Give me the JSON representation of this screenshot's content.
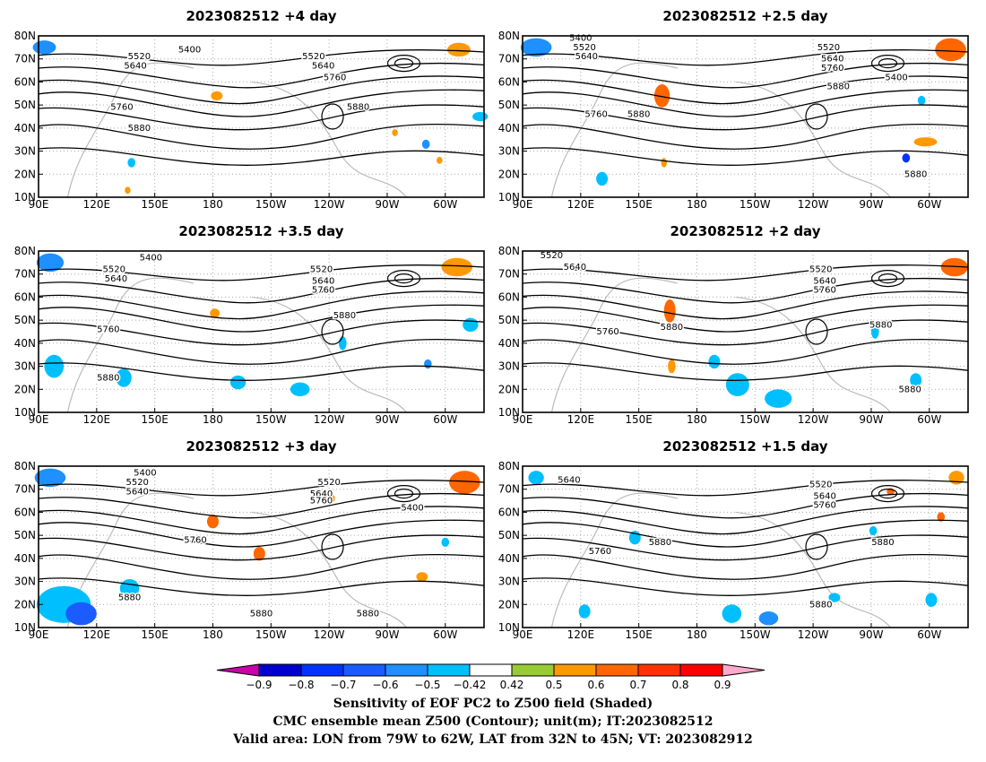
{
  "chart_data": [
    {
      "type": "heatmap",
      "title": "2023082512  +4 day",
      "xticks": [
        "90E",
        "120E",
        "150E",
        "180",
        "150W",
        "120W",
        "90W",
        "60W"
      ],
      "yticks": [
        "10N",
        "20N",
        "30N",
        "40N",
        "50N",
        "60N",
        "70N",
        "80N"
      ],
      "xlim_deg_east": [
        90,
        320
      ],
      "ylim_deg_north": [
        10,
        80
      ],
      "grid": "dotted",
      "contour_labels": [
        {
          "text": "5400",
          "lon": 168,
          "lat": 74
        },
        {
          "text": "5520",
          "lon": 142,
          "lat": 71
        },
        {
          "text": "5640",
          "lon": 140,
          "lat": 67
        },
        {
          "text": "5520",
          "lon": 232,
          "lat": 71
        },
        {
          "text": "5640",
          "lon": 237,
          "lat": 67
        },
        {
          "text": "5760",
          "lon": 243,
          "lat": 62
        },
        {
          "text": "5760",
          "lon": 133,
          "lat": 49
        },
        {
          "text": "5880",
          "lon": 142,
          "lat": 40
        },
        {
          "text": "5880",
          "lon": 255,
          "lat": 49
        }
      ],
      "shading": [
        {
          "value": -0.6,
          "lon": 93,
          "lat": 75,
          "rx": 6,
          "ry": 3
        },
        {
          "value": 0.5,
          "lon": 307,
          "lat": 74,
          "rx": 6,
          "ry": 3
        },
        {
          "value": 0.5,
          "lon": 182,
          "lat": 54,
          "rx": 3,
          "ry": 2
        },
        {
          "value": -0.5,
          "lon": 318,
          "lat": 45,
          "rx": 4,
          "ry": 2
        },
        {
          "value": -0.5,
          "lon": 138,
          "lat": 25,
          "rx": 2,
          "ry": 2
        },
        {
          "value": 0.5,
          "lon": 136,
          "lat": 13,
          "rx": 1.5,
          "ry": 1.5
        },
        {
          "value": -0.6,
          "lon": 290,
          "lat": 33,
          "rx": 2,
          "ry": 2
        },
        {
          "value": 0.5,
          "lon": 297,
          "lat": 26,
          "rx": 1.5,
          "ry": 1.5
        },
        {
          "value": 0.5,
          "lon": 274,
          "lat": 38,
          "rx": 1.5,
          "ry": 1.5
        }
      ]
    },
    {
      "type": "heatmap",
      "title": "2023082512  +2.5 day",
      "xticks": [
        "90E",
        "120E",
        "150E",
        "180",
        "150W",
        "120W",
        "90W",
        "60W"
      ],
      "yticks": [
        "10N",
        "20N",
        "30N",
        "40N",
        "50N",
        "60N",
        "70N",
        "80N"
      ],
      "xlim_deg_east": [
        90,
        320
      ],
      "ylim_deg_north": [
        10,
        80
      ],
      "grid": "dotted",
      "contour_labels": [
        {
          "text": "5400",
          "lon": 120,
          "lat": 79
        },
        {
          "text": "5520",
          "lon": 122,
          "lat": 75
        },
        {
          "text": "5640",
          "lon": 123,
          "lat": 71
        },
        {
          "text": "5520",
          "lon": 248,
          "lat": 75
        },
        {
          "text": "5640",
          "lon": 250,
          "lat": 70
        },
        {
          "text": "5760",
          "lon": 250,
          "lat": 66
        },
        {
          "text": "5400",
          "lon": 283,
          "lat": 62
        },
        {
          "text": "5880",
          "lon": 253,
          "lat": 58
        },
        {
          "text": "5760",
          "lon": 128,
          "lat": 46
        },
        {
          "text": "5880",
          "lon": 150,
          "lat": 46
        },
        {
          "text": "5880",
          "lon": 293,
          "lat": 20
        }
      ],
      "shading": [
        {
          "value": -0.6,
          "lon": 97,
          "lat": 75,
          "rx": 8,
          "ry": 4
        },
        {
          "value": 0.6,
          "lon": 311,
          "lat": 74,
          "rx": 8,
          "ry": 5
        },
        {
          "value": 0.6,
          "lon": 162,
          "lat": 54,
          "rx": 4,
          "ry": 5
        },
        {
          "value": -0.5,
          "lon": 296,
          "lat": 52,
          "rx": 2,
          "ry": 2
        },
        {
          "value": 0.5,
          "lon": 298,
          "lat": 34,
          "rx": 6,
          "ry": 2
        },
        {
          "value": -0.8,
          "lon": 288,
          "lat": 27,
          "rx": 2,
          "ry": 2
        },
        {
          "value": -0.5,
          "lon": 131,
          "lat": 18,
          "rx": 3,
          "ry": 3
        },
        {
          "value": 0.5,
          "lon": 163,
          "lat": 25,
          "rx": 1.5,
          "ry": 2
        }
      ]
    },
    {
      "type": "heatmap",
      "title": "2023082512  +3.5 day",
      "xticks": [
        "90E",
        "120E",
        "150E",
        "180",
        "150W",
        "120W",
        "90W",
        "60W"
      ],
      "yticks": [
        "10N",
        "20N",
        "30N",
        "40N",
        "50N",
        "60N",
        "70N",
        "80N"
      ],
      "xlim_deg_east": [
        90,
        320
      ],
      "ylim_deg_north": [
        10,
        80
      ],
      "grid": "dotted",
      "contour_labels": [
        {
          "text": "5400",
          "lon": 148,
          "lat": 77
        },
        {
          "text": "5520",
          "lon": 129,
          "lat": 72
        },
        {
          "text": "5640",
          "lon": 130,
          "lat": 68
        },
        {
          "text": "5520",
          "lon": 236,
          "lat": 72
        },
        {
          "text": "5640",
          "lon": 237,
          "lat": 67
        },
        {
          "text": "5760",
          "lon": 237,
          "lat": 63
        },
        {
          "text": "5880",
          "lon": 248,
          "lat": 52
        },
        {
          "text": "5760",
          "lon": 126,
          "lat": 46
        },
        {
          "text": "5880",
          "lon": 126,
          "lat": 25
        }
      ],
      "shading": [
        {
          "value": -0.6,
          "lon": 96,
          "lat": 75,
          "rx": 7,
          "ry": 4
        },
        {
          "value": 0.5,
          "lon": 306,
          "lat": 73,
          "rx": 8,
          "ry": 4
        },
        {
          "value": 0.5,
          "lon": 181,
          "lat": 53,
          "rx": 2.5,
          "ry": 2
        },
        {
          "value": -0.5,
          "lon": 313,
          "lat": 48,
          "rx": 4,
          "ry": 3
        },
        {
          "value": -0.5,
          "lon": 134,
          "lat": 25,
          "rx": 4,
          "ry": 4
        },
        {
          "value": -0.5,
          "lon": 193,
          "lat": 23,
          "rx": 4,
          "ry": 3
        },
        {
          "value": -0.5,
          "lon": 225,
          "lat": 20,
          "rx": 5,
          "ry": 3
        },
        {
          "value": -0.5,
          "lon": 98,
          "lat": 30,
          "rx": 5,
          "ry": 5
        },
        {
          "value": -0.6,
          "lon": 291,
          "lat": 31,
          "rx": 2,
          "ry": 2
        },
        {
          "value": -0.5,
          "lon": 247,
          "lat": 40,
          "rx": 2,
          "ry": 3
        }
      ]
    },
    {
      "type": "heatmap",
      "title": "2023082512  +2 day",
      "xticks": [
        "90E",
        "120E",
        "150E",
        "180",
        "150W",
        "120W",
        "90W",
        "60W"
      ],
      "yticks": [
        "10N",
        "20N",
        "30N",
        "40N",
        "50N",
        "60N",
        "70N",
        "80N"
      ],
      "xlim_deg_east": [
        90,
        320
      ],
      "ylim_deg_north": [
        10,
        80
      ],
      "grid": "dotted",
      "contour_labels": [
        {
          "text": "5520",
          "lon": 105,
          "lat": 78
        },
        {
          "text": "5640",
          "lon": 117,
          "lat": 73
        },
        {
          "text": "5520",
          "lon": 244,
          "lat": 72
        },
        {
          "text": "5640",
          "lon": 246,
          "lat": 67
        },
        {
          "text": "5760",
          "lon": 246,
          "lat": 63
        },
        {
          "text": "5760",
          "lon": 134,
          "lat": 45
        },
        {
          "text": "5880",
          "lon": 167,
          "lat": 47
        },
        {
          "text": "5880",
          "lon": 275,
          "lat": 48
        },
        {
          "text": "5880",
          "lon": 290,
          "lat": 20
        }
      ],
      "shading": [
        {
          "value": 0.6,
          "lon": 313,
          "lat": 73,
          "rx": 7,
          "ry": 4
        },
        {
          "value": 0.6,
          "lon": 166,
          "lat": 54,
          "rx": 3,
          "ry": 5
        },
        {
          "value": -0.5,
          "lon": 201,
          "lat": 22,
          "rx": 6,
          "ry": 5
        },
        {
          "value": -0.5,
          "lon": 222,
          "lat": 16,
          "rx": 7,
          "ry": 4
        },
        {
          "value": -0.5,
          "lon": 272,
          "lat": 45,
          "rx": 2,
          "ry": 3
        },
        {
          "value": -0.5,
          "lon": 293,
          "lat": 24,
          "rx": 3,
          "ry": 3
        },
        {
          "value": 0.5,
          "lon": 167,
          "lat": 30,
          "rx": 2,
          "ry": 3
        },
        {
          "value": -0.5,
          "lon": 189,
          "lat": 32,
          "rx": 3,
          "ry": 3
        }
      ]
    },
    {
      "type": "heatmap",
      "title": "2023082512  +3 day",
      "xticks": [
        "90E",
        "120E",
        "150E",
        "180",
        "150W",
        "120W",
        "90W",
        "60W"
      ],
      "yticks": [
        "10N",
        "20N",
        "30N",
        "40N",
        "50N",
        "60N",
        "70N",
        "80N"
      ],
      "xlim_deg_east": [
        90,
        320
      ],
      "ylim_deg_north": [
        10,
        80
      ],
      "grid": "dotted",
      "contour_labels": [
        {
          "text": "5400",
          "lon": 145,
          "lat": 77
        },
        {
          "text": "5520",
          "lon": 141,
          "lat": 73
        },
        {
          "text": "5640",
          "lon": 141,
          "lat": 69
        },
        {
          "text": "5520",
          "lon": 240,
          "lat": 73
        },
        {
          "text": "5640",
          "lon": 236,
          "lat": 68
        },
        {
          "text": "5760",
          "lon": 236,
          "lat": 65
        },
        {
          "text": "5400",
          "lon": 283,
          "lat": 62
        },
        {
          "text": "5760",
          "lon": 171,
          "lat": 48
        },
        {
          "text": "5880",
          "lon": 137,
          "lat": 23
        },
        {
          "text": "5880",
          "lon": 205,
          "lat": 16
        },
        {
          "text": "5880",
          "lon": 260,
          "lat": 16
        }
      ],
      "shading": [
        {
          "value": -0.6,
          "lon": 96,
          "lat": 75,
          "rx": 8,
          "ry": 4
        },
        {
          "value": 0.6,
          "lon": 310,
          "lat": 73,
          "rx": 8,
          "ry": 5
        },
        {
          "value": 0.6,
          "lon": 180,
          "lat": 56,
          "rx": 3,
          "ry": 3
        },
        {
          "value": 0.6,
          "lon": 204,
          "lat": 42,
          "rx": 3,
          "ry": 3
        },
        {
          "value": 0.5,
          "lon": 241,
          "lat": 66,
          "rx": 2,
          "ry": 2
        },
        {
          "value": -0.5,
          "lon": 103,
          "lat": 20,
          "rx": 14,
          "ry": 8
        },
        {
          "value": -0.7,
          "lon": 112,
          "lat": 16,
          "rx": 8,
          "ry": 5
        },
        {
          "value": -0.5,
          "lon": 137,
          "lat": 27,
          "rx": 5,
          "ry": 4
        },
        {
          "value": 0.5,
          "lon": 288,
          "lat": 32,
          "rx": 3,
          "ry": 2
        },
        {
          "value": -0.5,
          "lon": 300,
          "lat": 47,
          "rx": 2,
          "ry": 2
        }
      ]
    },
    {
      "type": "heatmap",
      "title": "2023082512  +1.5 day",
      "xticks": [
        "90E",
        "120E",
        "150E",
        "180",
        "150W",
        "120W",
        "90W",
        "60W"
      ],
      "yticks": [
        "10N",
        "20N",
        "30N",
        "40N",
        "50N",
        "60N",
        "70N",
        "80N"
      ],
      "xlim_deg_east": [
        90,
        320
      ],
      "ylim_deg_north": [
        10,
        80
      ],
      "grid": "dotted",
      "contour_labels": [
        {
          "text": "5640",
          "lon": 114,
          "lat": 74
        },
        {
          "text": "5520",
          "lon": 244,
          "lat": 72
        },
        {
          "text": "5640",
          "lon": 246,
          "lat": 67
        },
        {
          "text": "5760",
          "lon": 246,
          "lat": 63
        },
        {
          "text": "5880",
          "lon": 161,
          "lat": 47
        },
        {
          "text": "5760",
          "lon": 130,
          "lat": 43
        },
        {
          "text": "5880",
          "lon": 276,
          "lat": 47
        },
        {
          "text": "5880",
          "lon": 244,
          "lat": 20
        }
      ],
      "shading": [
        {
          "value": -0.5,
          "lon": 97,
          "lat": 75,
          "rx": 4,
          "ry": 3
        },
        {
          "value": 0.6,
          "lon": 280,
          "lat": 69,
          "rx": 2,
          "ry": 1.5
        },
        {
          "value": 0.5,
          "lon": 314,
          "lat": 75,
          "rx": 4,
          "ry": 3
        },
        {
          "value": 0.6,
          "lon": 306,
          "lat": 58,
          "rx": 2,
          "ry": 2
        },
        {
          "value": -0.5,
          "lon": 148,
          "lat": 49,
          "rx": 3,
          "ry": 3
        },
        {
          "value": -0.5,
          "lon": 122,
          "lat": 17,
          "rx": 3,
          "ry": 3
        },
        {
          "value": -0.5,
          "lon": 198,
          "lat": 16,
          "rx": 5,
          "ry": 4
        },
        {
          "value": -0.6,
          "lon": 217,
          "lat": 14,
          "rx": 5,
          "ry": 3
        },
        {
          "value": -0.5,
          "lon": 301,
          "lat": 22,
          "rx": 3,
          "ry": 3
        },
        {
          "value": -0.5,
          "lon": 251,
          "lat": 23,
          "rx": 3,
          "ry": 2
        },
        {
          "value": -0.5,
          "lon": 271,
          "lat": 52,
          "rx": 2,
          "ry": 2
        }
      ]
    }
  ],
  "colorbar": {
    "ticks": [
      "−0.9",
      "−0.8",
      "−0.7",
      "−0.6",
      "−0.5",
      "−0.42",
      "0.42",
      "0.5",
      "0.6",
      "0.7",
      "0.8",
      "0.9"
    ],
    "colors": [
      "#0000cc",
      "#0033ff",
      "#1a5cff",
      "#1e90ff",
      "#00bfff",
      "#ffffff",
      "#99cc33",
      "#ff9900",
      "#ff6600",
      "#ff3300",
      "#ff0000"
    ],
    "end_low": "#cc00aa",
    "end_high": "#ffaacc"
  },
  "caption": {
    "line1": "Sensitivity of EOF PC2 to Z500 field (Shaded)",
    "line2": "CMC ensemble mean Z500 (Contour); unit(m); IT:2023082512",
    "line3": "Valid area: LON from 79W to 62W, LAT from 32N to 45N; VT: 2023082912"
  }
}
